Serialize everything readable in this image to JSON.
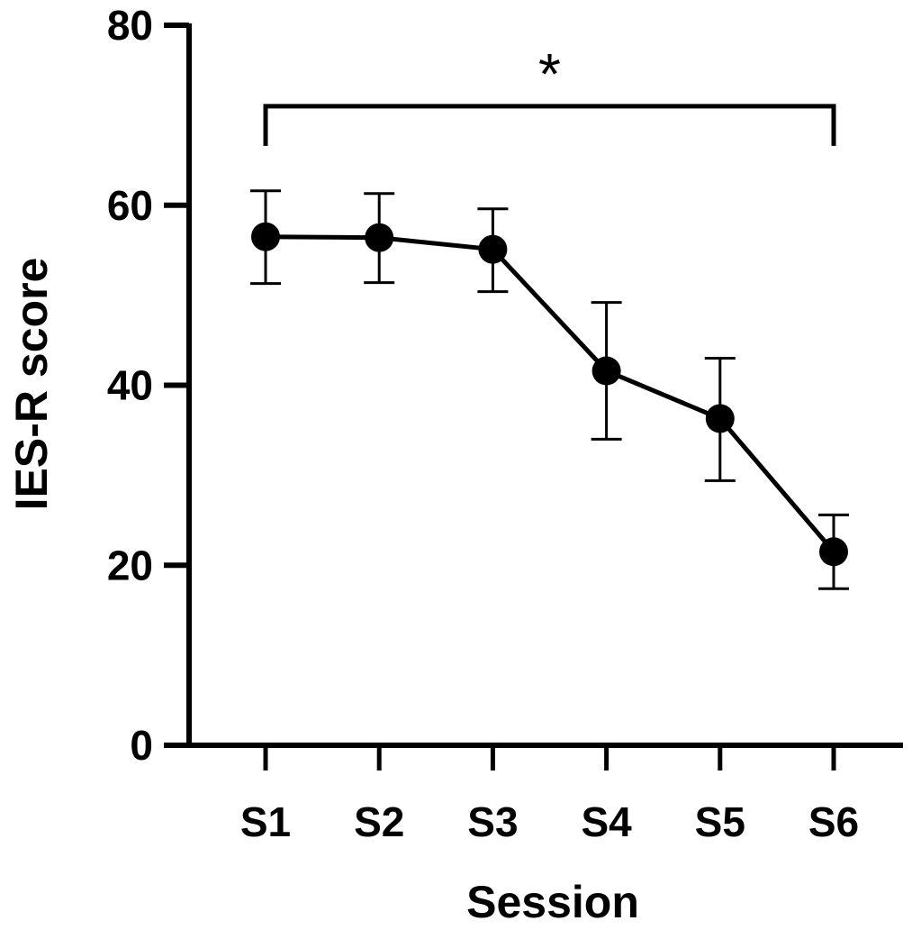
{
  "chart_data": {
    "type": "line",
    "title": "",
    "xlabel": "Session",
    "ylabel": "IES-R score",
    "categories": [
      "S1",
      "S2",
      "S3",
      "S4",
      "S5",
      "S6"
    ],
    "series": [
      {
        "name": "IES-R score",
        "values": [
          56.5,
          56.4,
          55.1,
          41.6,
          36.3,
          21.5
        ],
        "error_low": [
          51.3,
          51.4,
          50.4,
          34.0,
          29.4,
          17.4
        ],
        "error_high": [
          61.6,
          61.3,
          59.6,
          49.2,
          43.0,
          25.6
        ]
      }
    ],
    "ylim": [
      0,
      80
    ],
    "yticks": [
      0,
      20,
      40,
      60,
      80
    ],
    "grid": false,
    "legend": "none",
    "significance": {
      "label": "*",
      "from": "S1",
      "to": "S6",
      "level": 71
    },
    "colors": {
      "line": "#000000",
      "marker": "#000000"
    }
  }
}
